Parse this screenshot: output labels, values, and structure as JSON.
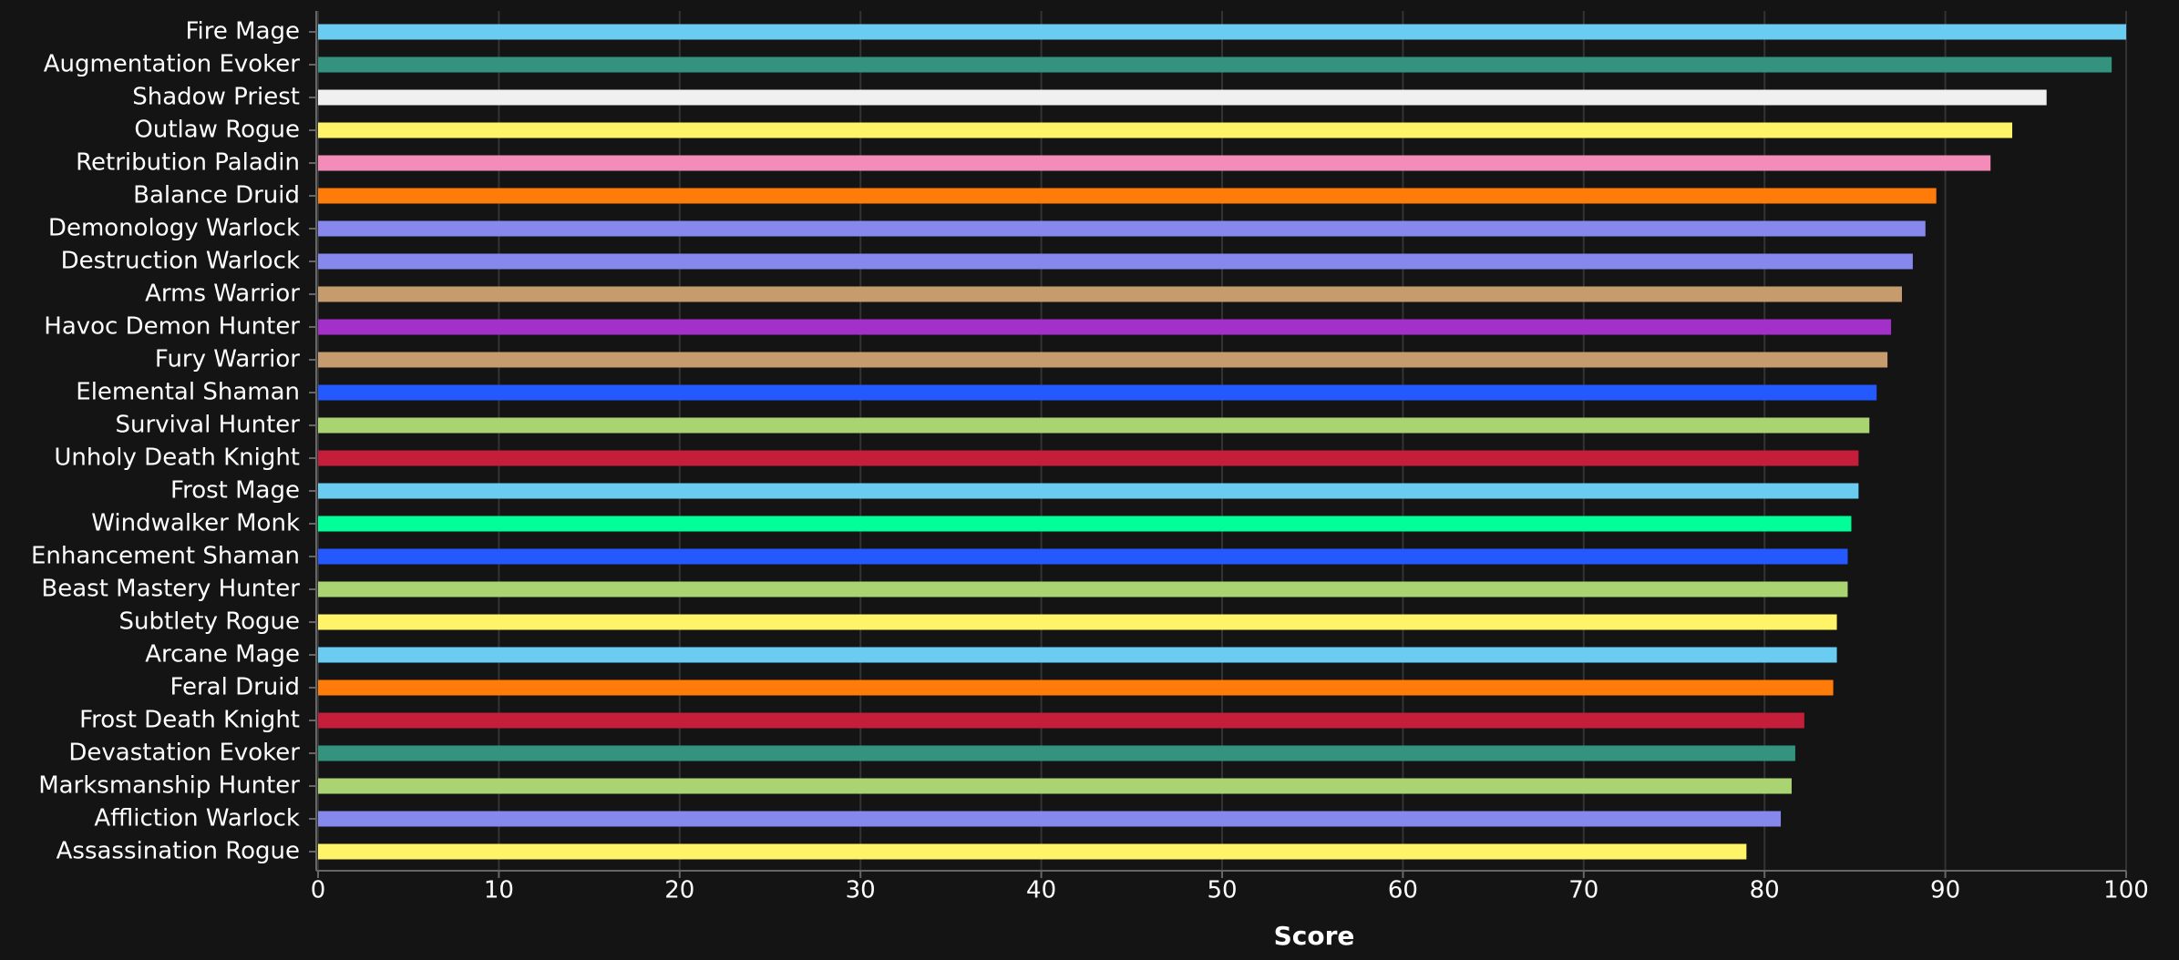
{
  "chart_data": {
    "type": "hbar",
    "x_label": "Score",
    "categories": [
      "Fire Mage",
      "Augmentation Evoker",
      "Shadow Priest",
      "Outlaw Rogue",
      "Retribution Paladin",
      "Balance Druid",
      "Demonology Warlock",
      "Destruction Warlock",
      "Arms Warrior",
      "Havoc Demon Hunter",
      "Fury Warrior",
      "Elemental Shaman",
      "Survival Hunter",
      "Unholy Death Knight",
      "Frost Mage",
      "Windwalker Monk",
      "Enhancement Shaman",
      "Beast Mastery Hunter",
      "Subtlety Rogue",
      "Arcane Mage",
      "Feral Druid",
      "Frost Death Knight",
      "Devastation Evoker",
      "Marksmanship Hunter",
      "Affliction Warlock",
      "Assassination Rogue"
    ],
    "values": [
      100,
      99.2,
      95.6,
      93.7,
      92.5,
      89.5,
      88.9,
      88.2,
      87.6,
      87.0,
      86.8,
      86.2,
      85.8,
      85.2,
      85.2,
      84.8,
      84.6,
      84.6,
      84.0,
      84.0,
      83.8,
      82.2,
      81.7,
      81.5,
      80.9,
      79.0
    ],
    "colors": [
      "#69ccf0",
      "#33937f",
      "#f0f0f0",
      "#fff468",
      "#f48cba",
      "#ff7c0a",
      "#8788ee",
      "#8788ee",
      "#c69b6d",
      "#a330c9",
      "#c69b6d",
      "#2359ff",
      "#aad372",
      "#c41e3a",
      "#69ccf0",
      "#00ff98",
      "#2359ff",
      "#aad372",
      "#fff468",
      "#69ccf0",
      "#ff7c0a",
      "#c41e3a",
      "#33937f",
      "#aad372",
      "#8788ee",
      "#fff468"
    ],
    "xlim": [
      0,
      100
    ],
    "xticks": [
      0,
      10,
      20,
      30,
      40,
      50,
      60,
      70,
      80,
      90,
      100
    ],
    "grid": true
  }
}
